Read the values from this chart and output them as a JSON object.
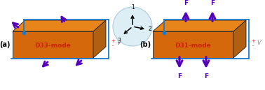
{
  "bg_color": "#ffffff",
  "box_color": "#d4680a",
  "top_color": "#e8851a",
  "right_color": "#b06010",
  "arrow_color": "#5500bb",
  "circuit_color": "#1a7acc",
  "dot_color": "#1a7acc",
  "label_a": "(a)",
  "label_b": "(b)",
  "mode_a": "D33-mode",
  "mode_b": "D31-mode",
  "v_label": "V",
  "plus_label": "+",
  "minus_label": "-",
  "axis_circle_color": "#ddeef5",
  "axis_border_color": "#aaccdd",
  "figsize": [
    3.78,
    1.29
  ],
  "dpi": 100
}
